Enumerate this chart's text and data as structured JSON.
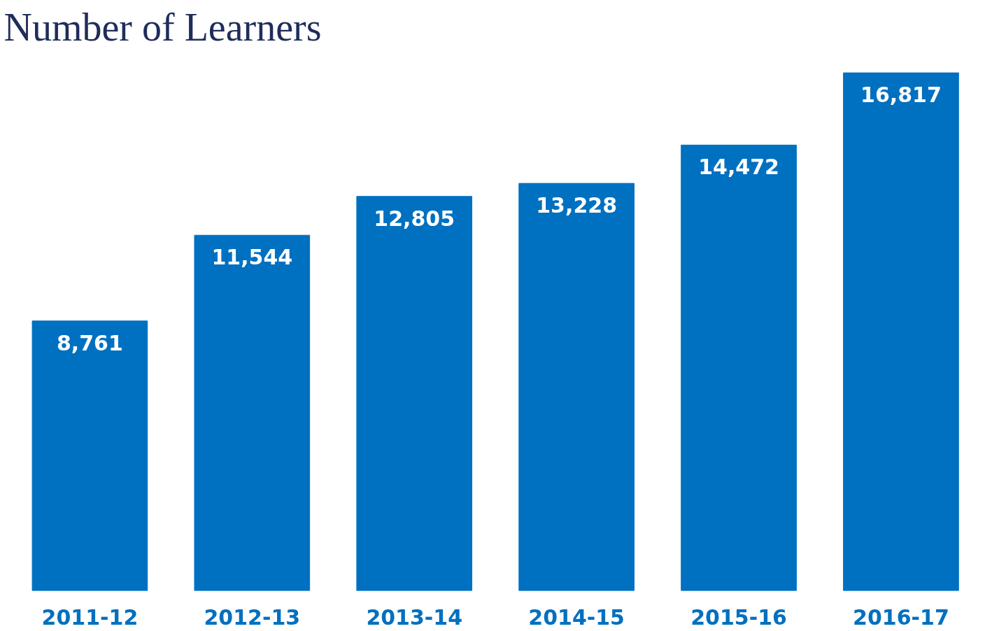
{
  "chart_data": {
    "type": "bar",
    "title": "Number of Learners",
    "categories": [
      "2011-12",
      "2012-13",
      "2013-14",
      "2014-15",
      "2015-16",
      "2016-17"
    ],
    "values": [
      8761,
      11544,
      12805,
      13228,
      14472,
      16817
    ],
    "value_labels": [
      "8,761",
      "11,544",
      "12,805",
      "13,228",
      "14,472",
      "16,817"
    ],
    "color": "#0070c0"
  }
}
